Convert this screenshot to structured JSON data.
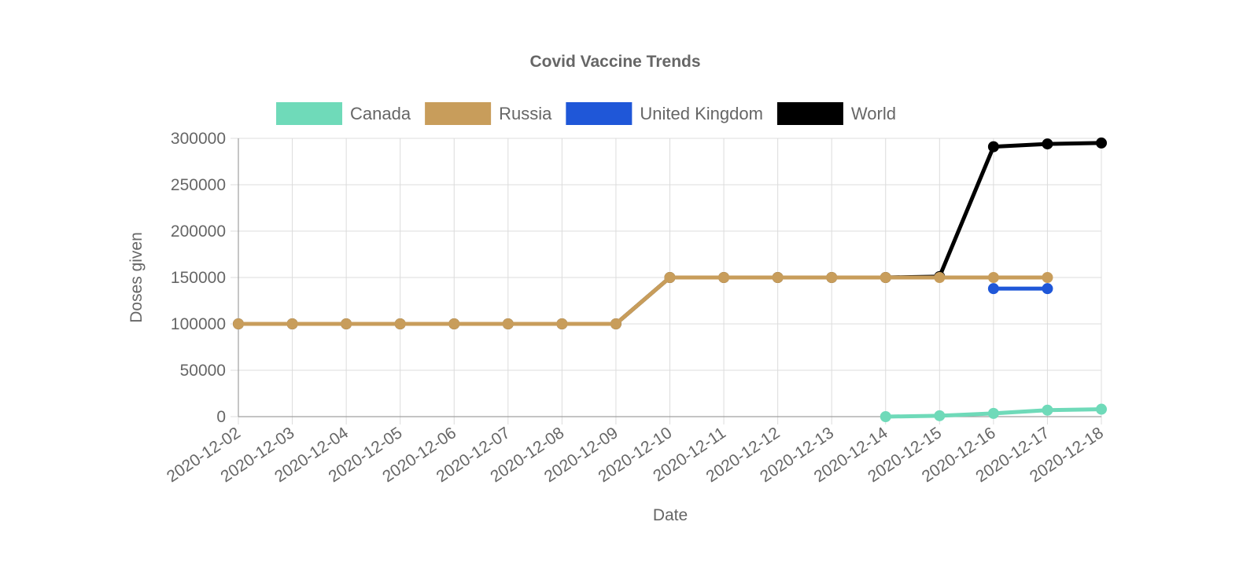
{
  "chart_data": {
    "type": "line",
    "title": "Covid Vaccine Trends",
    "xlabel": "Date",
    "ylabel": "Doses given",
    "ylim": [
      0,
      300000
    ],
    "yticks": [
      0,
      50000,
      100000,
      150000,
      200000,
      250000,
      300000
    ],
    "grid": true,
    "legend_position": "top",
    "categories": [
      "2020-12-02",
      "2020-12-03",
      "2020-12-04",
      "2020-12-05",
      "2020-12-06",
      "2020-12-07",
      "2020-12-08",
      "2020-12-09",
      "2020-12-10",
      "2020-12-11",
      "2020-12-12",
      "2020-12-13",
      "2020-12-14",
      "2020-12-15",
      "2020-12-16",
      "2020-12-17",
      "2020-12-18"
    ],
    "series": [
      {
        "name": "Canada",
        "color": "#6fdab9",
        "values": [
          null,
          null,
          null,
          null,
          null,
          null,
          null,
          null,
          null,
          null,
          null,
          null,
          0,
          1000,
          3500,
          7000,
          8000
        ]
      },
      {
        "name": "Russia",
        "color": "#c89d5b",
        "values": [
          100000,
          100000,
          100000,
          100000,
          100000,
          100000,
          100000,
          100000,
          150000,
          150000,
          150000,
          150000,
          150000,
          150000,
          150000,
          150000,
          null
        ]
      },
      {
        "name": "United Kingdom",
        "color": "#1f57d8",
        "values": [
          null,
          null,
          null,
          null,
          null,
          null,
          null,
          null,
          null,
          null,
          null,
          null,
          null,
          null,
          138000,
          138000,
          null
        ]
      },
      {
        "name": "World",
        "color": "#000000",
        "values": [
          100000,
          100000,
          100000,
          100000,
          100000,
          100000,
          100000,
          100000,
          150000,
          150000,
          150000,
          150000,
          150000,
          151000,
          291000,
          294000,
          295000
        ]
      }
    ]
  }
}
